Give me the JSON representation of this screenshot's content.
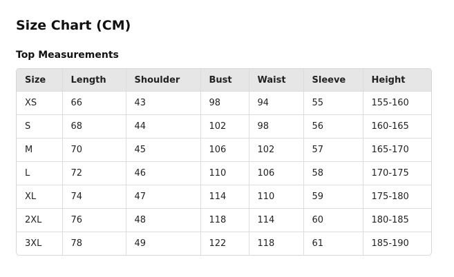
{
  "page": {
    "title": "Size Chart (CM)",
    "section_title": "Top Measurements"
  },
  "table": {
    "headers": [
      "Size",
      "Length",
      "Shoulder",
      "Bust",
      "Waist",
      "Sleeve",
      "Height"
    ],
    "rows": [
      [
        "XS",
        "66",
        "43",
        "98",
        "94",
        "55",
        "155-160"
      ],
      [
        "S",
        "68",
        "44",
        "102",
        "98",
        "56",
        "160-165"
      ],
      [
        "M",
        "70",
        "45",
        "106",
        "102",
        "57",
        "165-170"
      ],
      [
        "L",
        "72",
        "46",
        "110",
        "106",
        "58",
        "170-175"
      ],
      [
        "XL",
        "74",
        "47",
        "114",
        "110",
        "59",
        "175-180"
      ],
      [
        "2XL",
        "76",
        "48",
        "118",
        "114",
        "60",
        "180-185"
      ],
      [
        "3XL",
        "78",
        "49",
        "122",
        "118",
        "61",
        "185-190"
      ]
    ]
  }
}
